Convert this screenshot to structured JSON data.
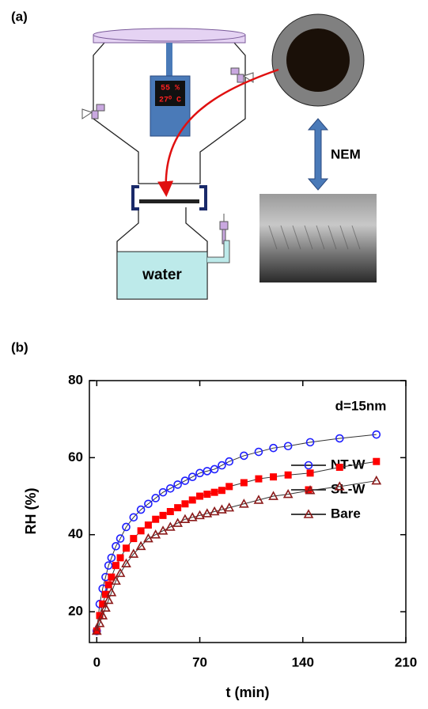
{
  "panel_a": {
    "label": "(a)",
    "display": [
      "55 %",
      "27⁰ C"
    ],
    "membrane_label": "NEM",
    "reservoir_label": "water"
  },
  "chart_data": {
    "type": "line",
    "panel_label": "(b)",
    "x_label": "t (min)",
    "y_label": "RH (%)",
    "annotation": "d=15nm",
    "x": [
      0,
      2,
      4,
      6,
      8,
      10,
      13,
      16,
      20,
      25,
      30,
      35,
      40,
      45,
      50,
      55,
      60,
      65,
      70,
      75,
      80,
      85,
      90,
      100,
      110,
      120,
      130,
      145,
      165,
      190
    ],
    "series": [
      {
        "name": "NT-W",
        "color": "#1f1fff",
        "marker": "circle",
        "values": [
          15,
          22,
          26,
          29,
          32,
          34,
          37,
          39,
          42,
          44.5,
          46.5,
          48,
          49.5,
          51,
          52,
          53,
          54,
          55,
          56,
          56.5,
          57,
          58,
          59,
          60.5,
          61.5,
          62.5,
          63,
          64,
          65,
          66
        ]
      },
      {
        "name": "SL-W",
        "color": "#ff0000",
        "marker": "square",
        "values": [
          15,
          19,
          22,
          24.5,
          27,
          29,
          32,
          34,
          36.5,
          39,
          41,
          42.5,
          44,
          45,
          46,
          47,
          48,
          49,
          50,
          50.5,
          51,
          51.5,
          52.5,
          53.5,
          54.5,
          55,
          55.5,
          56,
          57.5,
          59
        ]
      },
      {
        "name": "Bare",
        "color": "#8b1a1a",
        "marker": "triangle",
        "values": [
          15,
          17,
          19,
          21,
          23,
          25,
          28,
          30,
          32.5,
          35,
          37,
          39,
          40,
          41,
          42,
          43,
          44,
          44.5,
          45,
          45.5,
          46,
          46.5,
          47,
          48,
          49,
          50,
          50.5,
          51.5,
          52.5,
          54
        ]
      }
    ],
    "xlim": [
      -5,
      210
    ],
    "xticks": [
      0,
      70,
      140,
      210
    ],
    "ylim": [
      12,
      80
    ],
    "yticks": [
      20,
      40,
      60,
      80
    ]
  }
}
